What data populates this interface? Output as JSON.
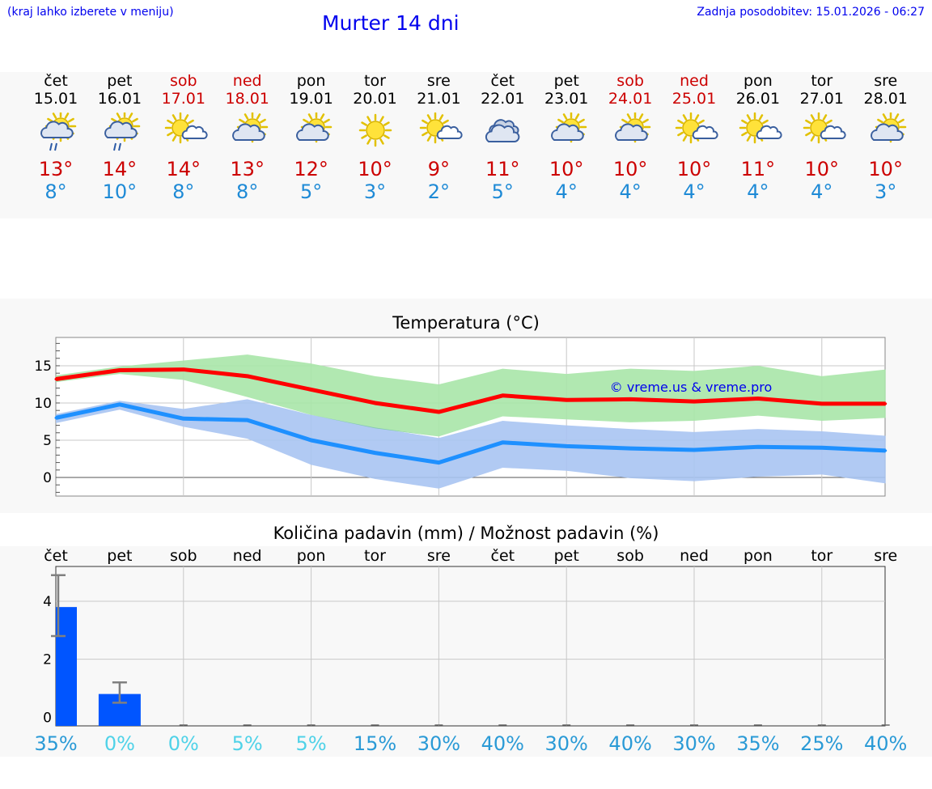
{
  "header": {
    "location_hint": "(kraj lahko izberete v meniju)",
    "title": "Murter 14 dni",
    "last_update": "Zadnja posodobitev: 15.01.2026 - 06:27"
  },
  "colors": {
    "link": "#0000ee",
    "tmax": "#cc0000",
    "tmin": "#1e8ad6",
    "max_band": "#a8e6a8",
    "min_band": "#a8c4f2",
    "overlap_band": "#7ec8a4",
    "max_line": "#ff0000",
    "min_line": "#1e90ff",
    "precip_bar": "#0055ff",
    "prob_dark": "#2a9ad6",
    "prob_light": "#4fd2e8"
  },
  "days": [
    {
      "name": "čet",
      "date": "15.01",
      "weekend": false,
      "icon": "sun-cloud-rain-icon",
      "tmax": "13°",
      "tmin": "8°"
    },
    {
      "name": "pet",
      "date": "16.01",
      "weekend": false,
      "icon": "sun-cloud-rain-icon",
      "tmax": "14°",
      "tmin": "10°"
    },
    {
      "name": "sob",
      "date": "17.01",
      "weekend": true,
      "icon": "sun-small-cloud-icon",
      "tmax": "14°",
      "tmin": "8°"
    },
    {
      "name": "ned",
      "date": "18.01",
      "weekend": true,
      "icon": "sun-cloud-icon",
      "tmax": "13°",
      "tmin": "8°"
    },
    {
      "name": "pon",
      "date": "19.01",
      "weekend": false,
      "icon": "sun-cloud-icon",
      "tmax": "12°",
      "tmin": "5°"
    },
    {
      "name": "tor",
      "date": "20.01",
      "weekend": false,
      "icon": "sun-icon",
      "tmax": "10°",
      "tmin": "3°"
    },
    {
      "name": "sre",
      "date": "21.01",
      "weekend": false,
      "icon": "sun-small-cloud-icon",
      "tmax": "9°",
      "tmin": "2°"
    },
    {
      "name": "čet",
      "date": "22.01",
      "weekend": false,
      "icon": "cloudy-icon",
      "tmax": "11°",
      "tmin": "5°"
    },
    {
      "name": "pet",
      "date": "23.01",
      "weekend": false,
      "icon": "sun-cloud-icon",
      "tmax": "10°",
      "tmin": "4°"
    },
    {
      "name": "sob",
      "date": "24.01",
      "weekend": true,
      "icon": "sun-cloud-icon",
      "tmax": "10°",
      "tmin": "4°"
    },
    {
      "name": "ned",
      "date": "25.01",
      "weekend": true,
      "icon": "sun-small-cloud-icon",
      "tmax": "10°",
      "tmin": "4°"
    },
    {
      "name": "pon",
      "date": "26.01",
      "weekend": false,
      "icon": "sun-small-cloud-icon",
      "tmax": "11°",
      "tmin": "4°"
    },
    {
      "name": "tor",
      "date": "27.01",
      "weekend": false,
      "icon": "sun-small-cloud-icon",
      "tmax": "10°",
      "tmin": "4°"
    },
    {
      "name": "sre",
      "date": "28.01",
      "weekend": false,
      "icon": "sun-cloud-icon",
      "tmax": "10°",
      "tmin": "3°"
    }
  ],
  "chart_data": [
    {
      "type": "line",
      "title": "Temperatura (°C)",
      "watermark": "© vreme.us & vreme.pro",
      "x": [
        0,
        1,
        2,
        3,
        4,
        5,
        6,
        7,
        8,
        9,
        10,
        11,
        12,
        13
      ],
      "ylim": [
        -2.5,
        18.8
      ],
      "yticks": [
        0,
        5,
        10,
        15
      ],
      "series": [
        {
          "name": "max",
          "values": [
            13.2,
            14.4,
            14.5,
            13.6,
            11.8,
            10.0,
            8.8,
            11.0,
            10.4,
            10.5,
            10.2,
            10.6,
            9.9,
            9.9
          ]
        },
        {
          "name": "min",
          "values": [
            8.0,
            9.8,
            7.9,
            7.7,
            5.0,
            3.3,
            2.0,
            4.7,
            4.2,
            3.9,
            3.7,
            4.1,
            4.0,
            3.6
          ]
        },
        {
          "name": "max_upper",
          "values": [
            13.7,
            14.9,
            15.7,
            16.5,
            15.3,
            13.6,
            12.5,
            14.6,
            13.9,
            14.6,
            14.3,
            15.0,
            13.6,
            14.5
          ]
        },
        {
          "name": "max_lower",
          "values": [
            12.8,
            13.9,
            13.1,
            10.8,
            8.4,
            6.6,
            5.5,
            8.2,
            7.8,
            7.4,
            7.6,
            8.3,
            7.6,
            8.0
          ]
        },
        {
          "name": "min_upper",
          "values": [
            8.5,
            10.3,
            9.2,
            10.5,
            8.4,
            6.7,
            5.3,
            7.6,
            7.0,
            6.5,
            6.1,
            6.5,
            6.2,
            5.6
          ]
        },
        {
          "name": "min_lower",
          "values": [
            7.3,
            9.1,
            6.8,
            5.2,
            1.7,
            -0.2,
            -1.5,
            1.3,
            0.9,
            -0.1,
            -0.5,
            0.1,
            0.4,
            -0.8
          ]
        }
      ]
    },
    {
      "type": "bar",
      "title": "Količina padavin (mm) / Možnost padavin (%)",
      "categories": [
        "čet",
        "pet",
        "sob",
        "ned",
        "pon",
        "tor",
        "sre",
        "čet",
        "pet",
        "sob",
        "ned",
        "pon",
        "tor",
        "sre"
      ],
      "ylim": [
        -0.3,
        5.2
      ],
      "yticks": [
        0,
        2,
        4
      ],
      "values": [
        3.8,
        0.8,
        0,
        0,
        0,
        0,
        0,
        0,
        0,
        0,
        0,
        0,
        0,
        0
      ],
      "error_low": [
        2.8,
        0.5,
        0,
        0,
        0,
        0,
        0,
        0,
        0,
        0,
        0,
        0,
        0,
        0
      ],
      "error_high": [
        4.9,
        1.2,
        0,
        0,
        0,
        0,
        0,
        0,
        0,
        0,
        0,
        0,
        0,
        0
      ],
      "probability": [
        "35%",
        "0%",
        "0%",
        "5%",
        "5%",
        "15%",
        "30%",
        "40%",
        "30%",
        "40%",
        "30%",
        "35%",
        "25%",
        "40%"
      ],
      "probability_tone": [
        "dark",
        "light",
        "light",
        "light",
        "light",
        "dark",
        "dark",
        "dark",
        "dark",
        "dark",
        "dark",
        "dark",
        "dark",
        "dark"
      ]
    }
  ]
}
